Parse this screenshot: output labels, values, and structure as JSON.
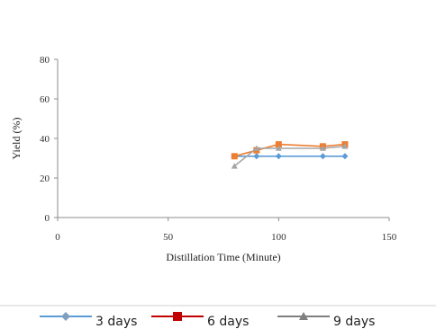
{
  "chart_data": {
    "type": "line",
    "xlabel": "Distillation Time (Minute)",
    "ylabel": "Yield (%)",
    "xlim": [
      0,
      150
    ],
    "ylim": [
      0,
      80
    ],
    "xticks": [
      "0",
      "50",
      "100",
      "150"
    ],
    "yticks": [
      "0",
      "20",
      "40",
      "60",
      "80"
    ],
    "grid": false,
    "legend_position": "bottom",
    "series": [
      {
        "name": "3 days",
        "color": "#5b9bd5",
        "marker": "diamond",
        "x": [
          80,
          90,
          100,
          120,
          130
        ],
        "y": [
          31,
          31,
          31,
          31,
          31
        ]
      },
      {
        "name": "6 days",
        "color": "#ed7d31",
        "marker": "square",
        "x": [
          80,
          90,
          100,
          120,
          130
        ],
        "y": [
          31,
          34,
          37,
          36,
          37
        ]
      },
      {
        "name": "9 days",
        "color": "#a5a5a5",
        "marker": "triangle",
        "x": [
          80,
          90,
          100,
          120,
          130
        ],
        "y": [
          26,
          35,
          35,
          35,
          36
        ]
      }
    ],
    "legend_colors": {
      "3 days": {
        "line": "#5b9bd5",
        "marker": "#7f9fbf"
      },
      "6 days": {
        "line": "#c00000",
        "marker": "#c00000"
      },
      "9 days": {
        "line": "#7f7f7f",
        "marker": "#7f7f7f"
      }
    }
  }
}
